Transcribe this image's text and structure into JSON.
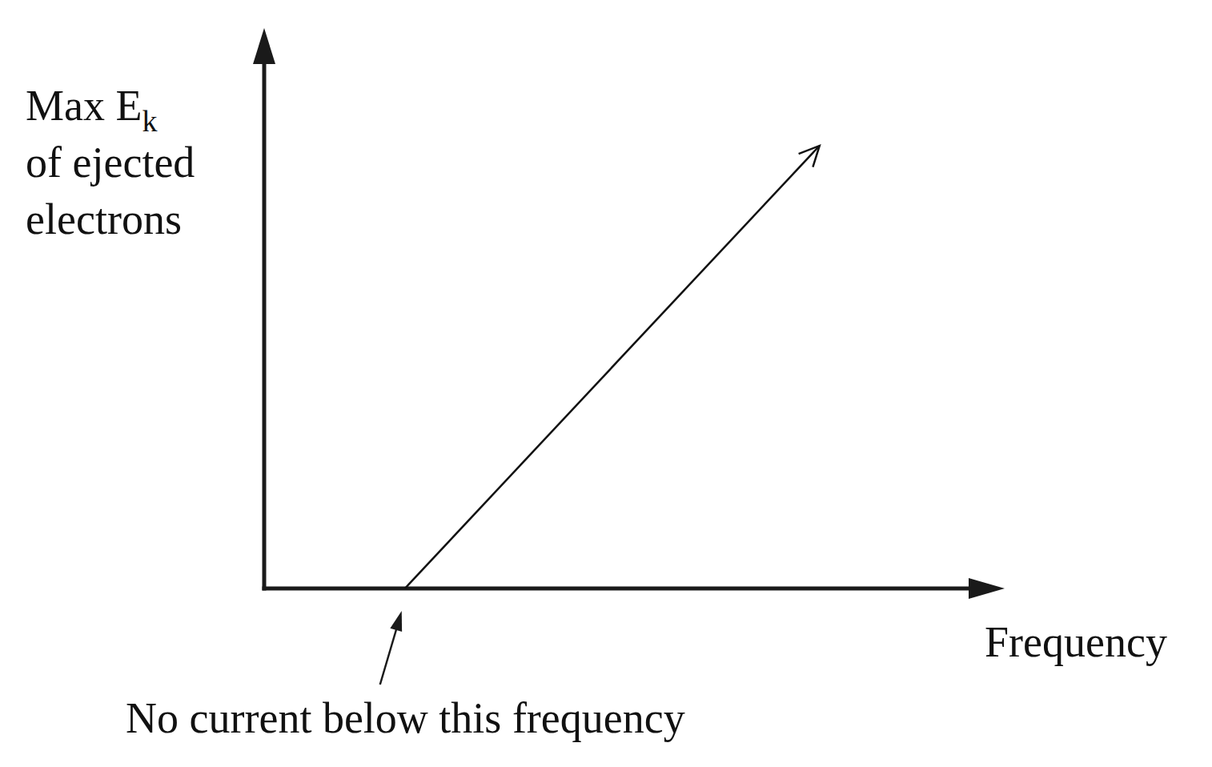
{
  "chart_data": {
    "type": "line",
    "xlabel": "Frequency",
    "ylabel": [
      [
        "Max E",
        "k"
      ],
      [
        "of ejected"
      ],
      [
        "electrons"
      ]
    ],
    "x": [
      1.9,
      7.5
    ],
    "series": [
      {
        "name": "Max Ek",
        "color": "#111111",
        "values": [
          0,
          7.9
        ]
      }
    ],
    "xlim": [
      0,
      10
    ],
    "ylim": [
      0,
      10
    ],
    "tick_labels": false,
    "annotations": [
      {
        "text": "No current below this frequency",
        "x": 1.9
      }
    ]
  }
}
